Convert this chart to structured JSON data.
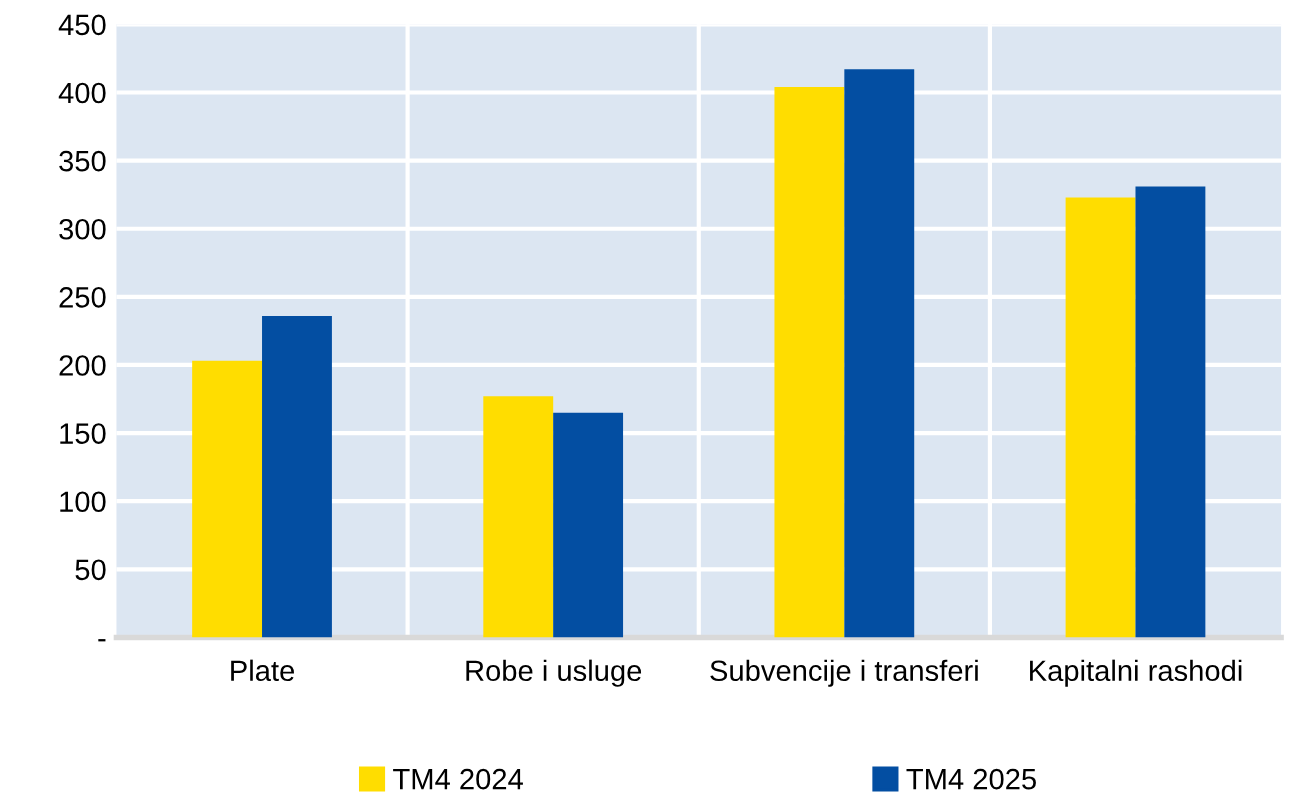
{
  "chart_data": {
    "type": "bar",
    "categories": [
      "Plate",
      "Robe i usluge",
      "Subvencije i transferi",
      "Kapitalni rashodi"
    ],
    "series": [
      {
        "name": "TM4 2024",
        "color": "#ffdd00",
        "values": [
          203,
          177,
          404,
          323
        ]
      },
      {
        "name": "TM4 2025",
        "color": "#034ea2",
        "values": [
          236,
          165,
          417,
          331
        ]
      }
    ],
    "ylim": [
      0,
      450
    ],
    "yticks": [
      {
        "value": 0,
        "label": "-"
      },
      50,
      100,
      150,
      200,
      250,
      300,
      350,
      400,
      450
    ],
    "grid": true,
    "legend": "bottom"
  }
}
